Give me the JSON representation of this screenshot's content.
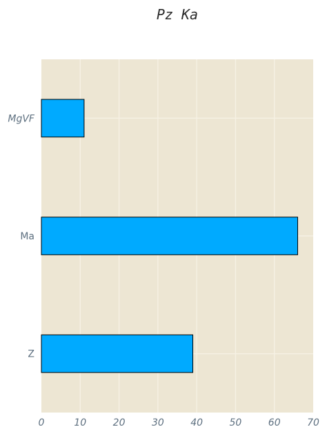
{
  "chart_data": {
    "type": "bar",
    "orientation": "horizontal",
    "title": "Pz Ka",
    "xlabel": "",
    "ylabel": "",
    "categories": [
      "MgVF",
      "Ma",
      "Z"
    ],
    "category_styles": [
      "italic",
      "normal",
      "normal"
    ],
    "values": [
      11,
      66,
      39
    ],
    "xlim": [
      0,
      70
    ],
    "xticks": [
      0,
      10,
      20,
      30,
      40,
      50,
      60,
      70
    ],
    "grid": true,
    "colors": {
      "plot_background": "#ede6d3",
      "bar_fill": "#00aaff",
      "bar_edge": "#000000",
      "grid": "#f6f1e4",
      "tick_text": "#5e7080",
      "title_text": "#2b2b2b"
    }
  }
}
